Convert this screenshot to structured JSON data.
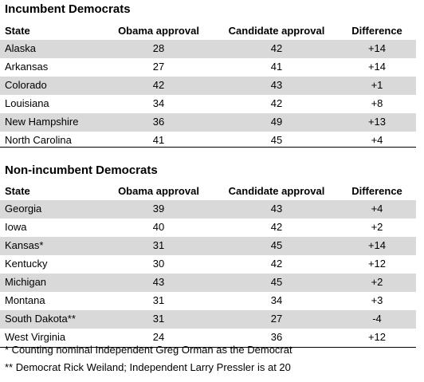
{
  "sections": [
    {
      "title": "Incumbent Democrats",
      "headers": {
        "state": "State",
        "obama": "Obama approval",
        "candidate": "Candidate approval",
        "difference": "Difference"
      },
      "rows": [
        {
          "state": "Alaska",
          "obama": "28",
          "candidate": "42",
          "difference": "+14"
        },
        {
          "state": "Arkansas",
          "obama": "27",
          "candidate": "41",
          "difference": "+14"
        },
        {
          "state": "Colorado",
          "obama": "42",
          "candidate": "43",
          "difference": "+1"
        },
        {
          "state": "Louisiana",
          "obama": "34",
          "candidate": "42",
          "difference": "+8"
        },
        {
          "state": "New Hampshire",
          "obama": "36",
          "candidate": "49",
          "difference": "+13"
        },
        {
          "state": "North Carolina",
          "obama": "41",
          "candidate": "45",
          "difference": "+4"
        }
      ]
    },
    {
      "title": "Non-incumbent Democrats",
      "headers": {
        "state": "State",
        "obama": "Obama approval",
        "candidate": "Candidate approval",
        "difference": "Difference"
      },
      "rows": [
        {
          "state": "Georgia",
          "obama": "39",
          "candidate": "43",
          "difference": "+4"
        },
        {
          "state": "Iowa",
          "obama": "40",
          "candidate": "42",
          "difference": "+2"
        },
        {
          "state": "Kansas*",
          "obama": "31",
          "candidate": "45",
          "difference": "+14"
        },
        {
          "state": "Kentucky",
          "obama": "30",
          "candidate": "42",
          "difference": "+12"
        },
        {
          "state": "Michigan",
          "obama": "43",
          "candidate": "45",
          "difference": "+2"
        },
        {
          "state": "Montana",
          "obama": "31",
          "candidate": "34",
          "difference": "+3"
        },
        {
          "state": "South Dakota**",
          "obama": "31",
          "candidate": "27",
          "difference": "-4"
        },
        {
          "state": "West Virginia",
          "obama": "24",
          "candidate": "36",
          "difference": "+12"
        }
      ]
    }
  ],
  "footnotes": [
    "* Counting nominal Independent Greg Orman as the Democrat",
    "** Democrat Rick Weiland; Independent Larry Pressler is at 20"
  ]
}
